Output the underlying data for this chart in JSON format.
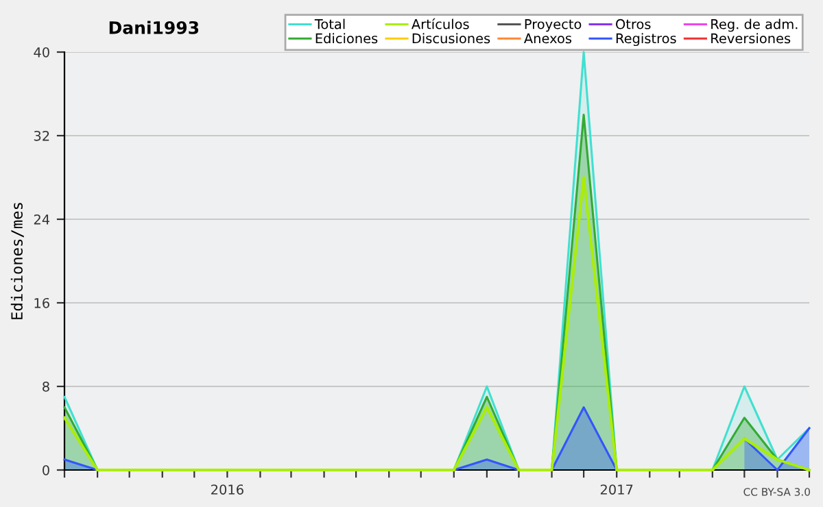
{
  "chart_data": {
    "type": "line",
    "title": "Dani1993",
    "ylabel": "Ediciones/mes",
    "x": [
      "2015-08",
      "2015-09",
      "2015-10",
      "2015-11",
      "2015-12",
      "2016-01",
      "2016-02",
      "2016-03",
      "2016-04",
      "2016-05",
      "2016-06",
      "2016-07",
      "2016-08",
      "2016-09",
      "2016-10",
      "2016-11",
      "2016-12",
      "2017-01",
      "2017-02",
      "2017-03",
      "2017-04",
      "2017-05",
      "2017-06",
      "2017-07"
    ],
    "series": [
      {
        "name": "Total",
        "type": "area",
        "color": "#40e0d0",
        "values": [
          7,
          0,
          0,
          0,
          0,
          0,
          0,
          0,
          0,
          0,
          0,
          0,
          0,
          8,
          0,
          0,
          40,
          0,
          0,
          0,
          0,
          8,
          1,
          4
        ]
      },
      {
        "name": "Ediciones",
        "type": "area",
        "color": "#33aa33",
        "values": [
          6,
          0,
          0,
          0,
          0,
          0,
          0,
          0,
          0,
          0,
          0,
          0,
          0,
          7,
          0,
          0,
          34,
          0,
          0,
          0,
          0,
          5,
          1,
          0
        ]
      },
      {
        "name": "Artículos",
        "color": "#aaee00",
        "values": [
          5,
          0,
          0,
          0,
          0,
          0,
          0,
          0,
          0,
          0,
          0,
          0,
          0,
          6,
          0,
          0,
          28,
          0,
          0,
          0,
          0,
          3,
          1,
          0
        ]
      },
      {
        "name": "Discusiones",
        "color": "#ffcc00",
        "values": [
          null,
          null,
          null,
          null,
          null,
          null,
          null,
          null,
          null,
          null,
          null,
          null,
          null,
          null,
          null,
          null,
          null,
          null,
          null,
          null,
          null,
          null,
          null,
          null
        ]
      },
      {
        "name": "Proyecto",
        "color": "#555555",
        "values": [
          null,
          null,
          null,
          null,
          null,
          null,
          null,
          null,
          null,
          null,
          null,
          null,
          null,
          null,
          null,
          null,
          null,
          null,
          null,
          null,
          null,
          null,
          null,
          null
        ]
      },
      {
        "name": "Anexos",
        "color": "#ff8833",
        "values": [
          null,
          null,
          null,
          null,
          null,
          null,
          null,
          null,
          null,
          null,
          null,
          null,
          null,
          null,
          null,
          null,
          null,
          null,
          null,
          null,
          null,
          null,
          null,
          null
        ]
      },
      {
        "name": "Otros",
        "color": "#8833ee",
        "values": [
          null,
          null,
          null,
          null,
          null,
          null,
          null,
          null,
          null,
          null,
          null,
          null,
          null,
          null,
          null,
          null,
          null,
          null,
          null,
          null,
          null,
          null,
          null,
          null
        ]
      },
      {
        "name": "Registros",
        "type": "area",
        "color": "#3355ff",
        "values": [
          1,
          0,
          null,
          null,
          null,
          null,
          null,
          null,
          null,
          null,
          null,
          null,
          0,
          1,
          0,
          0,
          6,
          0,
          null,
          null,
          null,
          3,
          0,
          4
        ]
      },
      {
        "name": "Reg. de adm.",
        "color": "#ee44ee",
        "values": [
          null,
          null,
          null,
          null,
          null,
          null,
          null,
          null,
          null,
          null,
          null,
          null,
          null,
          null,
          null,
          null,
          null,
          null,
          null,
          null,
          null,
          null,
          null,
          null
        ]
      },
      {
        "name": "Reversiones",
        "color": "#ee3333",
        "values": [
          null,
          null,
          null,
          null,
          null,
          null,
          null,
          null,
          null,
          null,
          null,
          null,
          null,
          null,
          null,
          null,
          null,
          null,
          null,
          null,
          null,
          null,
          null,
          null
        ]
      }
    ],
    "xlim": [
      "2015-08",
      "2017-07"
    ],
    "xticks": [
      {
        "value": "2015-08",
        "label": null
      },
      {
        "value": "2015-09",
        "label": null
      },
      {
        "value": "2015-10",
        "label": null
      },
      {
        "value": "2015-11",
        "label": null
      },
      {
        "value": "2015-12",
        "label": null
      },
      {
        "value": "2016-01",
        "label": "2016"
      },
      {
        "value": "2016-02",
        "label": null
      },
      {
        "value": "2016-03",
        "label": null
      },
      {
        "value": "2016-04",
        "label": null
      },
      {
        "value": "2016-05",
        "label": null
      },
      {
        "value": "2016-06",
        "label": null
      },
      {
        "value": "2016-07",
        "label": null
      },
      {
        "value": "2016-08",
        "label": null
      },
      {
        "value": "2016-09",
        "label": null
      },
      {
        "value": "2016-10",
        "label": null
      },
      {
        "value": "2016-11",
        "label": null
      },
      {
        "value": "2016-12",
        "label": null
      },
      {
        "value": "2017-01",
        "label": "2017"
      },
      {
        "value": "2017-02",
        "label": null
      },
      {
        "value": "2017-03",
        "label": null
      },
      {
        "value": "2017-04",
        "label": null
      },
      {
        "value": "2017-05",
        "label": null
      },
      {
        "value": "2017-06",
        "label": null
      },
      {
        "value": "2017-07",
        "label": null
      }
    ],
    "ylim": [
      0,
      40
    ],
    "yticks": [
      0,
      8,
      16,
      24,
      32,
      40
    ],
    "grid": "y",
    "legend": "top right",
    "marker": "none",
    "line_style": "solid",
    "annotations": [
      "CC BY-SA 3.0"
    ]
  }
}
